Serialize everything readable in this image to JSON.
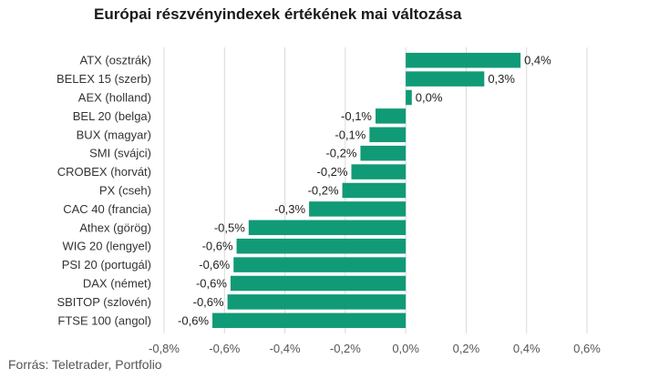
{
  "title": "Európai részvényindexek értékének mai változása",
  "source": "Forrás: Teletrader, Portfolio",
  "colors": {
    "bar": "#119a76",
    "grid": "#d9d9d9",
    "text": "#333333"
  },
  "chart_data": {
    "type": "bar",
    "orientation": "horizontal",
    "title": "Európai részvényindexek értékének mai változása",
    "xlabel": "",
    "ylabel": "",
    "xlim": [
      -0.8,
      0.6
    ],
    "grid": true,
    "x_ticks": [
      -0.8,
      -0.6,
      -0.4,
      -0.2,
      0.0,
      0.2,
      0.4,
      0.6
    ],
    "x_tick_labels": [
      "-0,8%",
      "-0,6%",
      "-0,4%",
      "-0,2%",
      "0,0%",
      "0,2%",
      "0,4%",
      "0,6%"
    ],
    "categories": [
      "ATX (osztrák)",
      "BELEX 15 (szerb)",
      "AEX (holland)",
      "BEL 20 (belga)",
      "BUX (magyar)",
      "SMI (svájci)",
      "CROBEX (horvát)",
      "PX (cseh)",
      "CAC 40 (francia)",
      "Athex (görög)",
      "WIG 20 (lengyel)",
      "PSI 20 (portugál)",
      "DAX (német)",
      "SBITOP (szlovén)",
      "FTSE 100 (angol)"
    ],
    "values": [
      0.38,
      0.26,
      0.02,
      -0.1,
      -0.12,
      -0.15,
      -0.18,
      -0.21,
      -0.32,
      -0.52,
      -0.56,
      -0.57,
      -0.58,
      -0.59,
      -0.64
    ],
    "data_labels": [
      "0,4%",
      "0,3%",
      "0,0%",
      "-0,1%",
      "-0,1%",
      "-0,2%",
      "-0,2%",
      "-0,2%",
      "-0,3%",
      "-0,5%",
      "-0,6%",
      "-0,6%",
      "-0,6%",
      "-0,6%",
      "-0,6%"
    ]
  }
}
